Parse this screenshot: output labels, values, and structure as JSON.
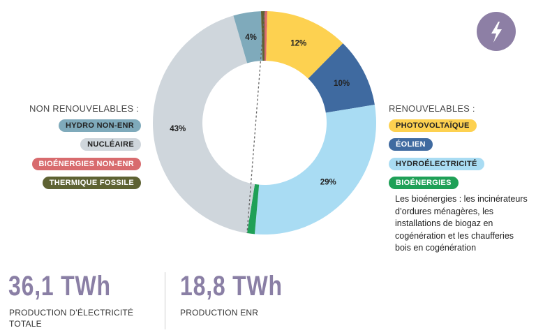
{
  "chart_data": {
    "type": "pie",
    "donut": true,
    "start": "top",
    "direction": "clockwise",
    "slices": [
      {
        "name": "BIOÉNERGIES NON-ENR",
        "value": 0.4,
        "label": "",
        "color": "#d86b6e"
      },
      {
        "name": "PHOTOVOLTAÏQUE",
        "value": 12,
        "label": "12%",
        "color": "#fdd150"
      },
      {
        "name": "ÉOLIEN",
        "value": 10,
        "label": "10%",
        "color": "#3f6aa0"
      },
      {
        "name": "HYDROÉLECTRICITÉ",
        "value": 29,
        "label": "29%",
        "color": "#a9dcf3"
      },
      {
        "name": "BIOÉNERGIES",
        "value": 1.1,
        "label": "",
        "color": "#1fa057"
      },
      {
        "name": "NUCLÉAIRE",
        "value": 43,
        "label": "43%",
        "color": "#cfd6dc"
      },
      {
        "name": "HYDRO NON-ENR",
        "value": 4,
        "label": "4%",
        "color": "#7faabb"
      },
      {
        "name": "THERMIQUE FOSSILE",
        "value": 0.5,
        "label": "",
        "color": "#5e6233"
      }
    ],
    "legend": {
      "non_renewable_title": "NON RENOUVELABLES :",
      "non_renewable": [
        "HYDRO NON-ENR",
        "NUCLÉAIRE",
        "BIOÉNERGIES NON-ENR",
        "THERMIQUE FOSSILE"
      ],
      "renewable_title": "RENOUVELABLES :",
      "renewable": [
        "PHOTOVOLTAÏQUE",
        "ÉOLIEN",
        "HYDROÉLECTRICITÉ",
        "BIOÉNERGIES"
      ]
    },
    "note": "Les bioénergies : les incinérateurs d’ordures ménagères, les installations de biogaz en cogénération et les chaufferies bois en cogénération"
  },
  "icon": "lightning-bolt-icon",
  "accent_color": "#8d7fa5",
  "stats": [
    {
      "value": "36,1 TWh",
      "caption": "PRODUCTION D’ÉLECTRICITÉ TOTALE"
    },
    {
      "value": "18,8 TWh",
      "caption": "PRODUCTION ENR"
    }
  ]
}
